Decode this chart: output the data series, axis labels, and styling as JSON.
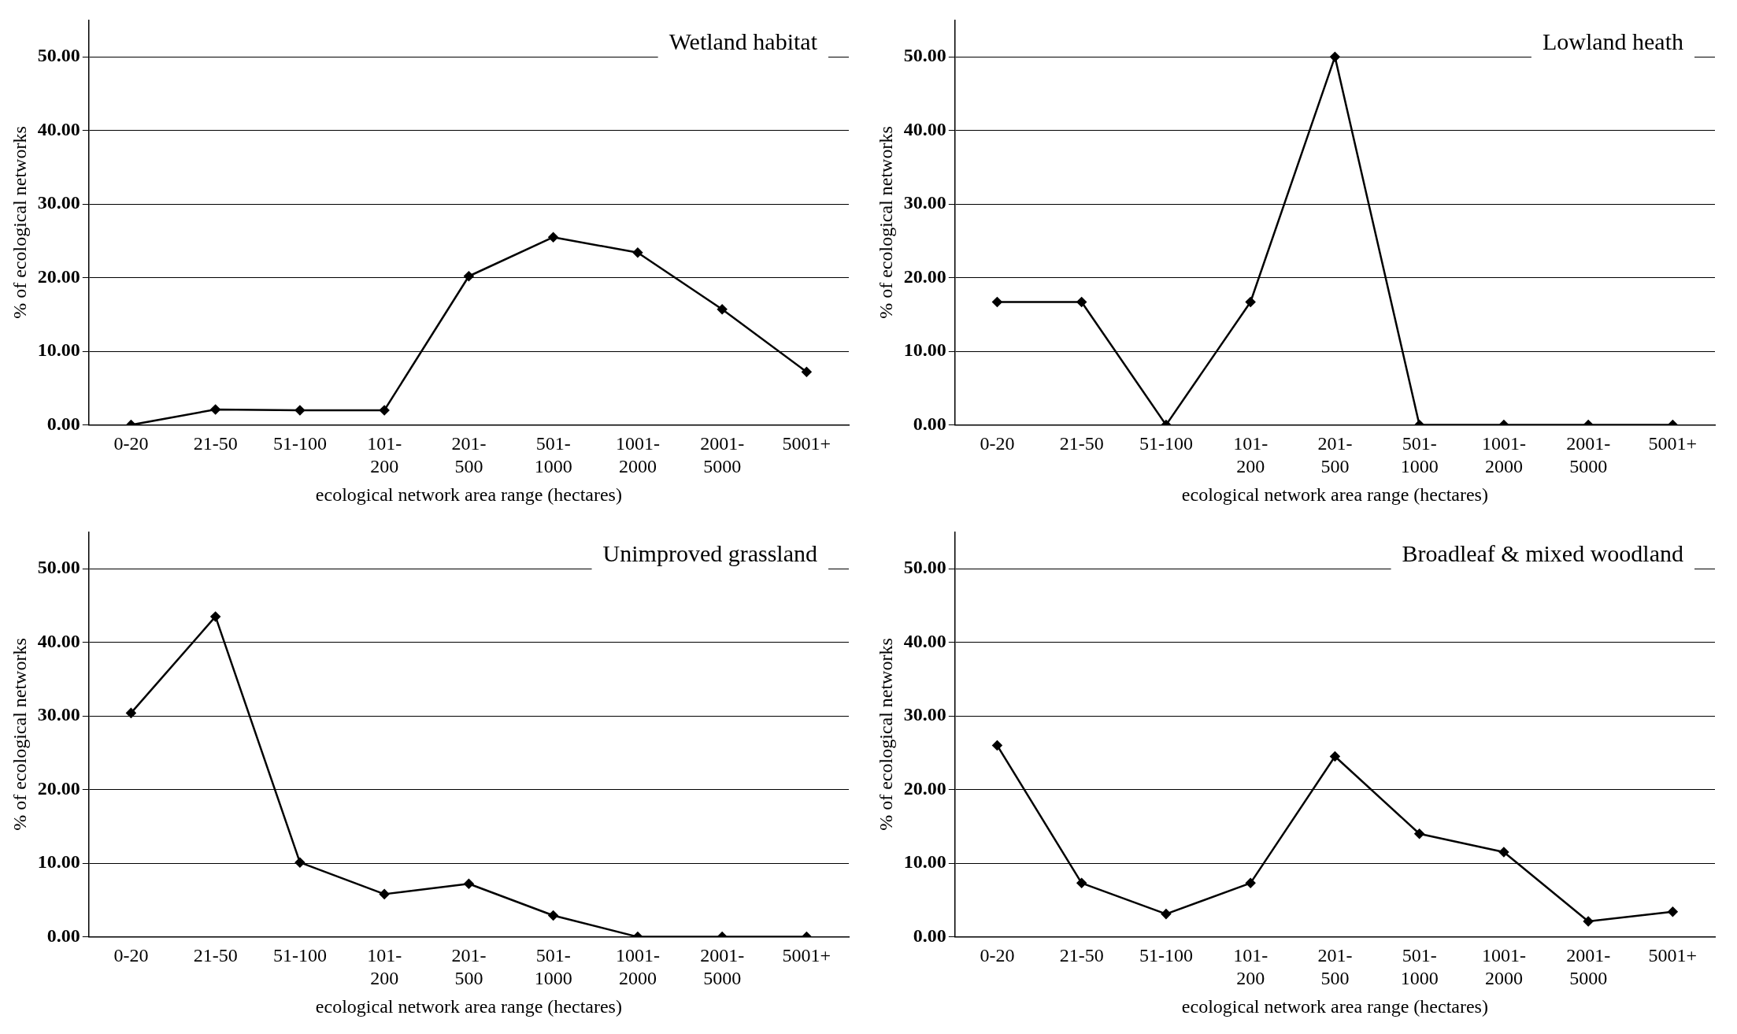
{
  "chart_data": [
    {
      "type": "line",
      "title": "Wetland habitat",
      "xlabel": "ecological network area range (hectares)",
      "ylabel": "% of ecological networks",
      "categories": [
        "0-20",
        "21-50",
        "51-100",
        "101-200",
        "201-500",
        "501-1000",
        "1001-2000",
        "2001-5000",
        "5001+"
      ],
      "series": [
        {
          "color": "#000000",
          "values": [
            0,
            2.1,
            2.0,
            2.0,
            20.2,
            25.5,
            23.4,
            15.7,
            7.2
          ]
        }
      ],
      "ylim": [
        0,
        55
      ],
      "yticks": [
        {
          "value": 0,
          "label": "0.00"
        },
        {
          "value": 10,
          "label": "10.00"
        },
        {
          "value": 20,
          "label": "20.00"
        },
        {
          "value": 30,
          "label": "30.00"
        },
        {
          "value": 40,
          "label": "40.00"
        },
        {
          "value": 50,
          "label": "50.00"
        }
      ],
      "grid": "y",
      "marker": "diamond",
      "legend": false
    },
    {
      "type": "line",
      "title": "Lowland heath",
      "xlabel": "ecological network area range (hectares)",
      "ylabel": "% of ecological networks",
      "categories": [
        "0-20",
        "21-50",
        "51-100",
        "101-200",
        "201-500",
        "501-1000",
        "1001-2000",
        "2001-5000",
        "5001+"
      ],
      "series": [
        {
          "color": "#000000",
          "values": [
            16.7,
            16.7,
            0,
            16.7,
            50,
            0,
            0,
            0,
            0
          ]
        }
      ],
      "ylim": [
        0,
        55
      ],
      "yticks": [
        {
          "value": 0,
          "label": "0.00"
        },
        {
          "value": 10,
          "label": "10.00"
        },
        {
          "value": 20,
          "label": "20.00"
        },
        {
          "value": 30,
          "label": "30.00"
        },
        {
          "value": 40,
          "label": "40.00"
        },
        {
          "value": 50,
          "label": "50.00"
        }
      ],
      "grid": "y",
      "marker": "diamond",
      "legend": false
    },
    {
      "type": "line",
      "title": "Unimproved grassland",
      "xlabel": "ecological network area range (hectares)",
      "ylabel": "% of ecological networks",
      "categories": [
        "0-20",
        "21-50",
        "51-100",
        "101-200",
        "201-500",
        "501-1000",
        "1001-2000",
        "2001-5000",
        "5001+"
      ],
      "series": [
        {
          "color": "#000000",
          "values": [
            30.4,
            43.5,
            10.1,
            5.8,
            7.2,
            2.9,
            0,
            0,
            0
          ]
        }
      ],
      "ylim": [
        0,
        55
      ],
      "yticks": [
        {
          "value": 0,
          "label": "0.00"
        },
        {
          "value": 10,
          "label": "10.00"
        },
        {
          "value": 20,
          "label": "20.00"
        },
        {
          "value": 30,
          "label": "30.00"
        },
        {
          "value": 40,
          "label": "40.00"
        },
        {
          "value": 50,
          "label": "50.00"
        }
      ],
      "grid": "y",
      "marker": "diamond",
      "legend": false
    },
    {
      "type": "line",
      "title": "Broadleaf & mixed woodland",
      "xlabel": "ecological network area range (hectares)",
      "ylabel": "% of ecological networks",
      "categories": [
        "0-20",
        "21-50",
        "51-100",
        "101-200",
        "201-500",
        "501-1000",
        "1001-2000",
        "2001-5000",
        "5001+"
      ],
      "series": [
        {
          "color": "#000000",
          "values": [
            26.0,
            7.3,
            3.1,
            7.3,
            24.5,
            14.0,
            11.5,
            2.1,
            3.4
          ]
        }
      ],
      "ylim": [
        0,
        55
      ],
      "yticks": [
        {
          "value": 0,
          "label": "0.00"
        },
        {
          "value": 10,
          "label": "10.00"
        },
        {
          "value": 20,
          "label": "20.00"
        },
        {
          "value": 30,
          "label": "30.00"
        },
        {
          "value": 40,
          "label": "40.00"
        },
        {
          "value": 50,
          "label": "50.00"
        }
      ],
      "grid": "y",
      "marker": "diamond",
      "legend": false
    }
  ]
}
